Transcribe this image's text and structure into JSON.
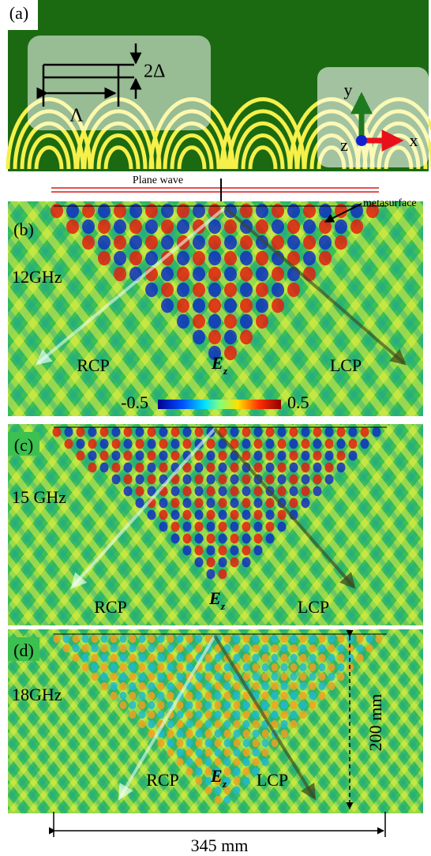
{
  "panel_a": {
    "label": "(a)",
    "delta_label": "2Δ",
    "period_label": "Λ",
    "axes": {
      "y": "y",
      "z": "z",
      "x": "x"
    }
  },
  "plane_wave": "Plane wave",
  "metasurface": "metasurface",
  "panels": [
    {
      "label": "(b)",
      "frequency": "12GHz",
      "rcp": "RCP",
      "lcp": "LCP",
      "field": "E",
      "field_subscript": "z"
    },
    {
      "label": "(c)",
      "frequency": "15 GHz",
      "rcp": "RCP",
      "lcp": "LCP",
      "field": "E",
      "field_subscript": "z"
    },
    {
      "label": "(d)",
      "frequency": "18GHz",
      "rcp": "RCP",
      "lcp": "LCP",
      "field": "E",
      "field_subscript": "z"
    }
  ],
  "colorbar": {
    "min": -0.5,
    "max": 0.5
  },
  "dimensions": {
    "height": "200 mm",
    "width": "345 mm"
  }
}
